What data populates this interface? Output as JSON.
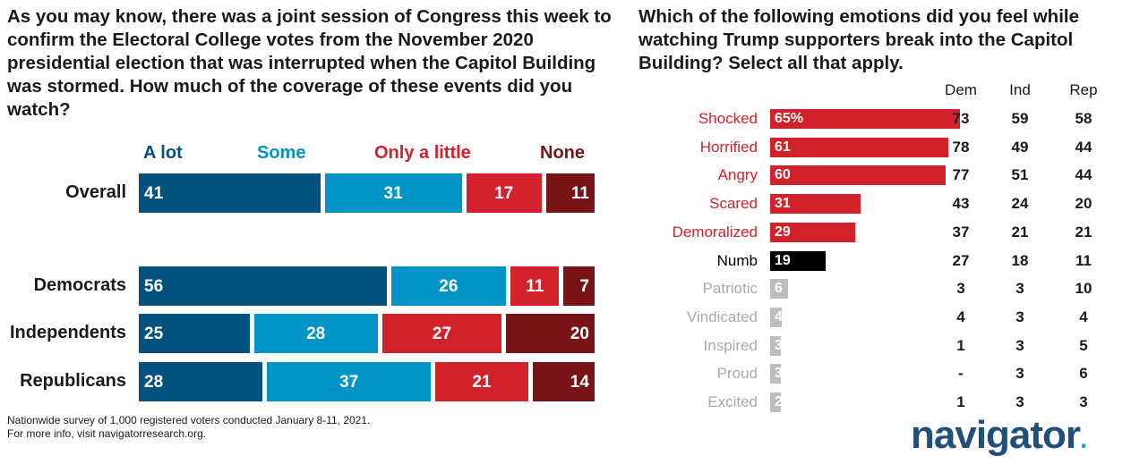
{
  "left_question": "As you may know, there was a joint session of Congress this week to confirm the Electoral College votes from the November 2020 presidential election that was interrupted when the Capitol Building was stormed. How much of the coverage of these events did you watch?",
  "right_question": "Which of the following emotions did you feel while watching Trump supporters break into the Capitol Building? Select all that apply.",
  "colors": {
    "a_lot": "#03527d",
    "some": "#0094c7",
    "only_a_little": "#d1222b",
    "none": "#781418",
    "black": "#000000",
    "grey": "#bdbdbd"
  },
  "chart_data": [
    {
      "type": "bar",
      "stacked": true,
      "orientation": "horizontal",
      "series": [
        {
          "name": "A lot",
          "color": "#03527d",
          "text_color": "#03527d"
        },
        {
          "name": "Some",
          "color": "#0094c7",
          "text_color": "#0094c7"
        },
        {
          "name": "Only a little",
          "color": "#d1222b",
          "text_color": "#d1222b"
        },
        {
          "name": "None",
          "color": "#781418",
          "text_color": "#781418"
        }
      ],
      "rows": [
        {
          "label": "Overall",
          "values": [
            41,
            31,
            17,
            11
          ]
        },
        {
          "label": "Democrats",
          "values": [
            56,
            26,
            11,
            7
          ]
        },
        {
          "label": "Independents",
          "values": [
            25,
            28,
            27,
            20
          ]
        },
        {
          "label": "Republicans",
          "values": [
            28,
            37,
            21,
            14
          ]
        }
      ]
    },
    {
      "type": "bar",
      "orientation": "horizontal",
      "column_headers": [
        "Dem",
        "Ind",
        "Rep"
      ],
      "rows": [
        {
          "label": "Shocked",
          "value": 65,
          "value_label": "65%",
          "color": "red",
          "dem": "73",
          "ind": "59",
          "rep": "58"
        },
        {
          "label": "Horrified",
          "value": 61,
          "value_label": "61",
          "color": "red",
          "dem": "78",
          "ind": "49",
          "rep": "44"
        },
        {
          "label": "Angry",
          "value": 60,
          "value_label": "60",
          "color": "red",
          "dem": "77",
          "ind": "51",
          "rep": "44"
        },
        {
          "label": "Scared",
          "value": 31,
          "value_label": "31",
          "color": "red",
          "dem": "43",
          "ind": "24",
          "rep": "20"
        },
        {
          "label": "Demoralized",
          "value": 29,
          "value_label": "29",
          "color": "red",
          "dem": "37",
          "ind": "21",
          "rep": "21"
        },
        {
          "label": "Numb",
          "value": 19,
          "value_label": "19",
          "color": "black",
          "dem": "27",
          "ind": "18",
          "rep": "11"
        },
        {
          "label": "Patriotic",
          "value": 6,
          "value_label": "6",
          "color": "grey",
          "dem": "3",
          "ind": "3",
          "rep": "10"
        },
        {
          "label": "Vindicated",
          "value": 4,
          "value_label": "4",
          "color": "grey",
          "dem": "4",
          "ind": "3",
          "rep": "4"
        },
        {
          "label": "Inspired",
          "value": 3,
          "value_label": "3",
          "color": "grey",
          "dem": "1",
          "ind": "3",
          "rep": "5"
        },
        {
          "label": "Proud",
          "value": 3,
          "value_label": "3",
          "color": "grey",
          "dem": "-",
          "ind": "3",
          "rep": "6"
        },
        {
          "label": "Excited",
          "value": 2,
          "value_label": "2",
          "color": "grey",
          "dem": "1",
          "ind": "3",
          "rep": "3"
        }
      ]
    }
  ],
  "footnote": {
    "line1": "Nationwide survey of 1,000 registered voters conducted January 8-11, 2021.",
    "line2": "For more info, visit navigatorresearch.org."
  },
  "logo": {
    "text": "navigator",
    "dot": "."
  }
}
